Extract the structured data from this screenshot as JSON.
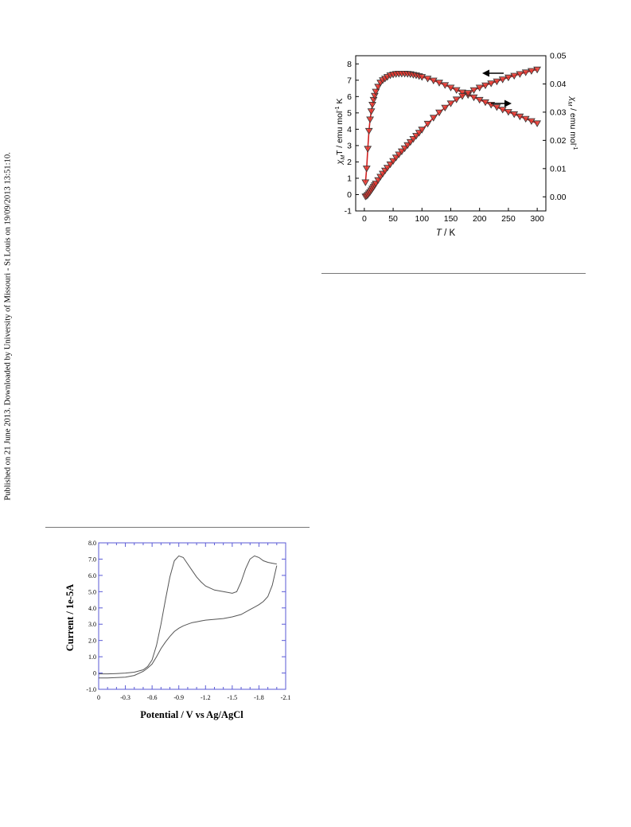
{
  "page": {
    "sidebar_text": "Published on 21 June 2013. Downloaded by University of Missouri - St Louis on 19/09/2013 13:51:10."
  },
  "figures": [
    {
      "id": "magnetic",
      "chart_data": {
        "type": "scatter",
        "xlabel_italic": "T",
        "xlabel_unit": " / K",
        "ylabel_left_chi": "χ",
        "ylabel_left_sub": "M",
        "ylabel_left_rest": "T / emu mol",
        "ylabel_left_sup": "-1",
        "ylabel_left_end": " K",
        "ylabel_right_chi": "χ",
        "ylabel_right_sub": "M",
        "ylabel_right_rest": " / emu mol",
        "ylabel_right_sup": "-1",
        "xlim": [
          -15,
          315
        ],
        "ylim_left": [
          -1,
          8.5
        ],
        "ylim_right": [
          -0.005,
          0.05
        ],
        "x_ticks": [
          "0",
          "50",
          "100",
          "150",
          "200",
          "250",
          "300"
        ],
        "y_left_ticks": [
          "-1",
          "0",
          "1",
          "2",
          "3",
          "4",
          "5",
          "6",
          "7",
          "8"
        ],
        "y_right_ticks": [
          "0.00",
          "0.01",
          "0.02",
          "0.03",
          "0.04",
          "0.05"
        ],
        "series": [
          {
            "axis": "left",
            "x": [
              2,
              4,
              6,
              8,
              10,
              12,
              14,
              16,
              18,
              20,
              24,
              28,
              32,
              36,
              40,
              45,
              50,
              55,
              60,
              65,
              70,
              75,
              80,
              85,
              90,
              95,
              100,
              110,
              120,
              130,
              140,
              150,
              160,
              170,
              180,
              190,
              200,
              210,
              220,
              230,
              240,
              250,
              260,
              270,
              280,
              290,
              300
            ],
            "y": [
              0.75,
              1.6,
              2.8,
              3.9,
              4.6,
              5.1,
              5.5,
              5.8,
              6.05,
              6.3,
              6.6,
              6.85,
              7.0,
              7.1,
              7.2,
              7.3,
              7.35,
              7.38,
              7.4,
              7.4,
              7.4,
              7.39,
              7.37,
              7.33,
              7.3,
              7.25,
              7.2,
              7.1,
              6.98,
              6.85,
              6.7,
              6.55,
              6.4,
              6.25,
              6.1,
              5.95,
              5.8,
              5.65,
              5.5,
              5.35,
              5.2,
              5.06,
              4.92,
              4.78,
              4.64,
              4.5,
              4.36
            ]
          },
          {
            "axis": "right",
            "x": [
              2,
              4,
              6,
              8,
              10,
              12,
              14,
              16,
              18,
              20,
              24,
              28,
              32,
              36,
              40,
              45,
              50,
              55,
              60,
              65,
              70,
              75,
              80,
              85,
              90,
              95,
              100,
              110,
              120,
              130,
              140,
              150,
              160,
              170,
              180,
              190,
              200,
              210,
              220,
              230,
              240,
              250,
              260,
              270,
              280,
              290,
              300
            ],
            "y": [
              0.0001,
              0.0003,
              0.0007,
              0.0012,
              0.0017,
              0.0023,
              0.0029,
              0.0035,
              0.0041,
              0.0047,
              0.0059,
              0.0071,
              0.0082,
              0.0093,
              0.0103,
              0.0115,
              0.0127,
              0.0139,
              0.015,
              0.0161,
              0.0172,
              0.0183,
              0.0194,
              0.0205,
              0.0216,
              0.0227,
              0.0238,
              0.0259,
              0.028,
              0.0299,
              0.0316,
              0.0331,
              0.0345,
              0.0357,
              0.0368,
              0.0378,
              0.0387,
              0.0395,
              0.0402,
              0.0409,
              0.0416,
              0.0423,
              0.0429,
              0.0435,
              0.0441,
              0.0446,
              0.0451
            ]
          }
        ],
        "marker_fill": "#e8362e",
        "marker_stroke": "#333333",
        "fit_color": "#d22020"
      }
    },
    {
      "id": "cv",
      "chart_data": {
        "type": "line",
        "xlabel": "Potential / V vs Ag/AgCl",
        "ylabel": "Current / 1e-5A",
        "xlim": [
          0,
          -2.1
        ],
        "ylim": [
          -1.0,
          8.0
        ],
        "x_ticks": [
          "0",
          "-0.3",
          "-0.6",
          "-0.9",
          "-1.2",
          "-1.5",
          "-1.8",
          "-2.1"
        ],
        "y_ticks": [
          "-1.0",
          "0",
          "1.0",
          "2.0",
          "3.0",
          "4.0",
          "5.0",
          "6.0",
          "7.0",
          "8.0"
        ],
        "series": [
          {
            "segment": "return",
            "x": [
              0,
              -0.1,
              -0.2,
              -0.3,
              -0.4,
              -0.5,
              -0.55,
              -0.6,
              -0.65,
              -0.7,
              -0.75,
              -0.8,
              -0.85,
              -0.9,
              -0.95,
              -1.0,
              -1.05,
              -1.1,
              -1.15,
              -1.2,
              -1.3,
              -1.4,
              -1.5,
              -1.6,
              -1.7,
              -1.75,
              -1.8,
              -1.85,
              -1.9,
              -1.95,
              -2.0
            ],
            "y": [
              -0.3,
              -0.3,
              -0.28,
              -0.25,
              -0.15,
              0.1,
              0.3,
              0.55,
              1.0,
              1.5,
              1.9,
              2.25,
              2.55,
              2.75,
              2.9,
              3.0,
              3.1,
              3.15,
              3.2,
              3.25,
              3.3,
              3.35,
              3.45,
              3.6,
              3.9,
              4.05,
              4.2,
              4.4,
              4.7,
              5.4,
              6.6
            ]
          },
          {
            "segment": "forward",
            "x": [
              0,
              -0.1,
              -0.2,
              -0.3,
              -0.4,
              -0.5,
              -0.55,
              -0.6,
              -0.65,
              -0.7,
              -0.75,
              -0.8,
              -0.85,
              -0.9,
              -0.95,
              -1.0,
              -1.05,
              -1.1,
              -1.15,
              -1.2,
              -1.3,
              -1.4,
              -1.5,
              -1.55,
              -1.6,
              -1.65,
              -1.7,
              -1.75,
              -1.8,
              -1.85,
              -1.9,
              -1.95,
              -2.0
            ],
            "y": [
              -0.05,
              -0.05,
              -0.03,
              0.0,
              0.05,
              0.2,
              0.4,
              0.8,
              1.7,
              3.0,
              4.5,
              5.9,
              6.9,
              7.2,
              7.1,
              6.7,
              6.3,
              5.9,
              5.6,
              5.35,
              5.1,
              5.0,
              4.9,
              5.0,
              5.6,
              6.4,
              7.0,
              7.2,
              7.1,
              6.9,
              6.8,
              6.75,
              6.7
            ]
          }
        ],
        "line_color": "#555555",
        "frame_color": "#5a5ad6"
      }
    }
  ]
}
